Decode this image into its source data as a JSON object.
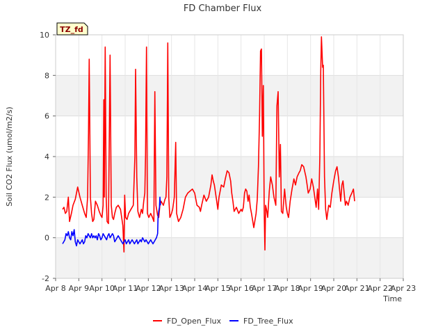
{
  "chart_data": {
    "type": "line",
    "title": "FD Chamber Flux",
    "xlabel": "Time",
    "ylabel": "Soil CO2 Flux (umol/m2/s)",
    "badge": "TZ_fd",
    "xlim": [
      8,
      23
    ],
    "ylim": [
      -2,
      10
    ],
    "x_ticks": [
      {
        "value": 8,
        "label": "Apr 8"
      },
      {
        "value": 9,
        "label": "Apr 9"
      },
      {
        "value": 10,
        "label": "Apr 10"
      },
      {
        "value": 11,
        "label": "Apr 11"
      },
      {
        "value": 12,
        "label": "Apr 12"
      },
      {
        "value": 13,
        "label": "Apr 13"
      },
      {
        "value": 14,
        "label": "Apr 14"
      },
      {
        "value": 15,
        "label": "Apr 15"
      },
      {
        "value": 16,
        "label": "Apr 16"
      },
      {
        "value": 17,
        "label": "Apr 17"
      },
      {
        "value": 18,
        "label": "Apr 18"
      },
      {
        "value": 19,
        "label": "Apr 19"
      },
      {
        "value": 20,
        "label": "Apr 20"
      },
      {
        "value": 21,
        "label": "Apr 21"
      },
      {
        "value": 22,
        "label": "Apr 22"
      },
      {
        "value": 23,
        "label": "Apr 23"
      }
    ],
    "y_ticks": [
      {
        "value": -2,
        "label": "-2"
      },
      {
        "value": 0,
        "label": "0"
      },
      {
        "value": 2,
        "label": "2"
      },
      {
        "value": 4,
        "label": "4"
      },
      {
        "value": 6,
        "label": "6"
      },
      {
        "value": 8,
        "label": "8"
      },
      {
        "value": 10,
        "label": "10"
      }
    ],
    "series": [
      {
        "name": "FD_Open_Flux",
        "color": "#ff0000",
        "points": [
          [
            8.3,
            1.4
          ],
          [
            8.36,
            1.5
          ],
          [
            8.42,
            1.2
          ],
          [
            8.48,
            1.3
          ],
          [
            8.55,
            2.0
          ],
          [
            8.6,
            0.8
          ],
          [
            8.68,
            1.2
          ],
          [
            8.75,
            1.6
          ],
          [
            8.85,
            1.9
          ],
          [
            8.95,
            2.5
          ],
          [
            9.05,
            2.0
          ],
          [
            9.15,
            1.6
          ],
          [
            9.25,
            1.2
          ],
          [
            9.32,
            1.0
          ],
          [
            9.38,
            2.0
          ],
          [
            9.42,
            5.2
          ],
          [
            9.45,
            8.8
          ],
          [
            9.5,
            2.0
          ],
          [
            9.55,
            1.2
          ],
          [
            9.6,
            0.8
          ],
          [
            9.65,
            0.9
          ],
          [
            9.72,
            1.8
          ],
          [
            9.8,
            1.6
          ],
          [
            9.88,
            1.3
          ],
          [
            9.95,
            1.1
          ],
          [
            10.0,
            1.0
          ],
          [
            10.05,
            1.6
          ],
          [
            10.08,
            6.8
          ],
          [
            10.1,
            2.0
          ],
          [
            10.14,
            9.4
          ],
          [
            10.18,
            2.0
          ],
          [
            10.22,
            0.8
          ],
          [
            10.28,
            0.7
          ],
          [
            10.35,
            9.0
          ],
          [
            10.4,
            1.6
          ],
          [
            10.45,
            1.0
          ],
          [
            10.5,
            0.9
          ],
          [
            10.55,
            1.2
          ],
          [
            10.62,
            1.5
          ],
          [
            10.7,
            1.6
          ],
          [
            10.8,
            1.4
          ],
          [
            10.85,
            1.0
          ],
          [
            10.9,
            0.6
          ],
          [
            10.95,
            -0.7
          ],
          [
            10.98,
            2.1
          ],
          [
            11.02,
            1.0
          ],
          [
            11.08,
            0.9
          ],
          [
            11.15,
            1.2
          ],
          [
            11.25,
            1.4
          ],
          [
            11.35,
            1.6
          ],
          [
            11.42,
            4.0
          ],
          [
            11.45,
            8.3
          ],
          [
            11.5,
            3.0
          ],
          [
            11.55,
            1.3
          ],
          [
            11.62,
            1.0
          ],
          [
            11.7,
            1.4
          ],
          [
            11.75,
            1.2
          ],
          [
            11.8,
            1.8
          ],
          [
            11.85,
            2.2
          ],
          [
            11.88,
            4.0
          ],
          [
            11.92,
            9.4
          ],
          [
            11.96,
            1.2
          ],
          [
            12.02,
            1.0
          ],
          [
            12.1,
            1.2
          ],
          [
            12.18,
            1.0
          ],
          [
            12.24,
            0.8
          ],
          [
            12.28,
            7.2
          ],
          [
            12.33,
            1.6
          ],
          [
            12.4,
            1.1
          ],
          [
            12.45,
            1.0
          ],
          [
            12.5,
            1.6
          ],
          [
            12.55,
            1.8
          ],
          [
            12.6,
            1.7
          ],
          [
            12.65,
            1.6
          ],
          [
            12.72,
            1.9
          ],
          [
            12.76,
            2.0
          ],
          [
            12.8,
            3.0
          ],
          [
            12.84,
            9.6
          ],
          [
            12.88,
            2.0
          ],
          [
            12.93,
            1.0
          ],
          [
            13.0,
            1.2
          ],
          [
            13.05,
            1.4
          ],
          [
            13.12,
            2.0
          ],
          [
            13.18,
            4.7
          ],
          [
            13.22,
            1.2
          ],
          [
            13.3,
            0.8
          ],
          [
            13.4,
            1.0
          ],
          [
            13.5,
            1.4
          ],
          [
            13.6,
            2.0
          ],
          [
            13.7,
            2.2
          ],
          [
            13.8,
            2.3
          ],
          [
            13.9,
            2.4
          ],
          [
            14.0,
            2.2
          ],
          [
            14.1,
            1.6
          ],
          [
            14.2,
            1.5
          ],
          [
            14.25,
            1.3
          ],
          [
            14.3,
            1.6
          ],
          [
            14.4,
            2.1
          ],
          [
            14.5,
            1.8
          ],
          [
            14.6,
            2.0
          ],
          [
            14.7,
            2.6
          ],
          [
            14.75,
            3.1
          ],
          [
            14.8,
            2.8
          ],
          [
            14.85,
            2.6
          ],
          [
            14.9,
            2.2
          ],
          [
            14.95,
            1.8
          ],
          [
            15.0,
            1.4
          ],
          [
            15.05,
            2.0
          ],
          [
            15.15,
            2.6
          ],
          [
            15.25,
            2.5
          ],
          [
            15.32,
            2.9
          ],
          [
            15.4,
            3.3
          ],
          [
            15.48,
            3.2
          ],
          [
            15.55,
            2.8
          ],
          [
            15.6,
            2.2
          ],
          [
            15.65,
            1.8
          ],
          [
            15.7,
            1.3
          ],
          [
            15.8,
            1.5
          ],
          [
            15.9,
            1.2
          ],
          [
            16.0,
            1.4
          ],
          [
            16.05,
            1.3
          ],
          [
            16.1,
            1.5
          ],
          [
            16.15,
            2.2
          ],
          [
            16.2,
            2.4
          ],
          [
            16.25,
            2.3
          ],
          [
            16.3,
            1.8
          ],
          [
            16.35,
            2.1
          ],
          [
            16.4,
            1.5
          ],
          [
            16.45,
            1.2
          ],
          [
            16.55,
            0.5
          ],
          [
            16.65,
            1.2
          ],
          [
            16.7,
            1.9
          ],
          [
            16.75,
            3.5
          ],
          [
            16.8,
            6.0
          ],
          [
            16.84,
            9.2
          ],
          [
            16.88,
            9.3
          ],
          [
            16.92,
            5.0
          ],
          [
            16.96,
            7.5
          ],
          [
            17.0,
            1.2
          ],
          [
            17.03,
            -0.6
          ],
          [
            17.06,
            1.6
          ],
          [
            17.1,
            1.4
          ],
          [
            17.15,
            1.0
          ],
          [
            17.22,
            2.3
          ],
          [
            17.28,
            3.0
          ],
          [
            17.35,
            2.6
          ],
          [
            17.42,
            2.0
          ],
          [
            17.5,
            1.6
          ],
          [
            17.55,
            6.5
          ],
          [
            17.6,
            7.2
          ],
          [
            17.65,
            3.0
          ],
          [
            17.7,
            4.6
          ],
          [
            17.74,
            1.3
          ],
          [
            17.8,
            1.2
          ],
          [
            17.88,
            2.4
          ],
          [
            17.95,
            1.5
          ],
          [
            18.0,
            1.2
          ],
          [
            18.05,
            1.0
          ],
          [
            18.12,
            1.8
          ],
          [
            18.2,
            2.4
          ],
          [
            18.28,
            2.9
          ],
          [
            18.35,
            2.6
          ],
          [
            18.42,
            3.0
          ],
          [
            18.5,
            3.2
          ],
          [
            18.55,
            3.3
          ],
          [
            18.62,
            3.6
          ],
          [
            18.7,
            3.5
          ],
          [
            18.8,
            3.0
          ],
          [
            18.85,
            2.6
          ],
          [
            18.9,
            2.2
          ],
          [
            18.98,
            2.4
          ],
          [
            19.05,
            2.9
          ],
          [
            19.12,
            2.5
          ],
          [
            19.18,
            2.0
          ],
          [
            19.24,
            1.5
          ],
          [
            19.3,
            2.4
          ],
          [
            19.35,
            1.4
          ],
          [
            19.4,
            4.0
          ],
          [
            19.44,
            8.2
          ],
          [
            19.47,
            9.9
          ],
          [
            19.52,
            8.4
          ],
          [
            19.55,
            8.5
          ],
          [
            19.6,
            3.0
          ],
          [
            19.65,
            1.4
          ],
          [
            19.7,
            0.9
          ],
          [
            19.78,
            1.6
          ],
          [
            19.85,
            1.5
          ],
          [
            19.92,
            2.2
          ],
          [
            20.0,
            2.8
          ],
          [
            20.08,
            3.3
          ],
          [
            20.14,
            3.5
          ],
          [
            20.2,
            3.0
          ],
          [
            20.25,
            2.4
          ],
          [
            20.3,
            1.8
          ],
          [
            20.35,
            2.6
          ],
          [
            20.4,
            2.8
          ],
          [
            20.45,
            2.2
          ],
          [
            20.5,
            1.6
          ],
          [
            20.55,
            1.8
          ],
          [
            20.62,
            1.6
          ],
          [
            20.7,
            2.0
          ],
          [
            20.78,
            2.2
          ],
          [
            20.85,
            2.4
          ],
          [
            20.9,
            1.8
          ]
        ]
      },
      {
        "name": "FD_Tree_Flux",
        "color": "#0000ff",
        "points": [
          [
            8.3,
            -0.3
          ],
          [
            8.35,
            -0.2
          ],
          [
            8.4,
            -0.1
          ],
          [
            8.45,
            0.2
          ],
          [
            8.5,
            0.1
          ],
          [
            8.55,
            0.3
          ],
          [
            8.6,
            0.0
          ],
          [
            8.65,
            -0.1
          ],
          [
            8.7,
            0.3
          ],
          [
            8.75,
            0.1
          ],
          [
            8.8,
            0.4
          ],
          [
            8.85,
            -0.2
          ],
          [
            8.9,
            -0.4
          ],
          [
            8.95,
            -0.1
          ],
          [
            9.0,
            -0.2
          ],
          [
            9.05,
            -0.3
          ],
          [
            9.1,
            -0.2
          ],
          [
            9.15,
            -0.1
          ],
          [
            9.2,
            -0.3
          ],
          [
            9.25,
            -0.2
          ],
          [
            9.3,
            0.1
          ],
          [
            9.35,
            0.0
          ],
          [
            9.4,
            0.2
          ],
          [
            9.45,
            0.1
          ],
          [
            9.5,
            0.0
          ],
          [
            9.55,
            0.2
          ],
          [
            9.6,
            0.0
          ],
          [
            9.65,
            0.1
          ],
          [
            9.7,
            0.0
          ],
          [
            9.75,
            0.1
          ],
          [
            9.8,
            -0.1
          ],
          [
            9.85,
            0.2
          ],
          [
            9.9,
            0.1
          ],
          [
            9.95,
            -0.1
          ],
          [
            10.0,
            0.0
          ],
          [
            10.05,
            0.2
          ],
          [
            10.1,
            0.1
          ],
          [
            10.15,
            0.0
          ],
          [
            10.2,
            -0.1
          ],
          [
            10.25,
            0.1
          ],
          [
            10.3,
            0.2
          ],
          [
            10.35,
            0.0
          ],
          [
            10.4,
            0.1
          ],
          [
            10.45,
            0.2
          ],
          [
            10.5,
            0.1
          ],
          [
            10.55,
            -0.2
          ],
          [
            10.6,
            -0.1
          ],
          [
            10.65,
            0.0
          ],
          [
            10.7,
            0.1
          ],
          [
            10.75,
            0.0
          ],
          [
            10.8,
            -0.1
          ],
          [
            10.85,
            -0.2
          ],
          [
            10.9,
            -0.3
          ],
          [
            10.95,
            -0.2
          ],
          [
            11.0,
            -0.1
          ],
          [
            11.05,
            -0.3
          ],
          [
            11.1,
            -0.2
          ],
          [
            11.15,
            -0.1
          ],
          [
            11.2,
            -0.3
          ],
          [
            11.25,
            -0.2
          ],
          [
            11.3,
            -0.1
          ],
          [
            11.35,
            -0.2
          ],
          [
            11.4,
            -0.3
          ],
          [
            11.45,
            -0.2
          ],
          [
            11.5,
            -0.1
          ],
          [
            11.55,
            -0.3
          ],
          [
            11.6,
            -0.2
          ],
          [
            11.65,
            -0.1
          ],
          [
            11.7,
            -0.2
          ],
          [
            11.75,
            0.0
          ],
          [
            11.8,
            -0.1
          ],
          [
            11.85,
            -0.2
          ],
          [
            11.9,
            -0.1
          ],
          [
            11.95,
            -0.2
          ],
          [
            12.0,
            -0.3
          ],
          [
            12.05,
            -0.2
          ],
          [
            12.1,
            -0.1
          ],
          [
            12.15,
            -0.2
          ],
          [
            12.2,
            -0.3
          ],
          [
            12.25,
            -0.2
          ],
          [
            12.3,
            -0.1
          ],
          [
            12.35,
            0.0
          ],
          [
            12.4,
            0.2
          ],
          [
            12.42,
            1.0
          ],
          [
            12.45,
            1.3
          ],
          [
            12.48,
            1.5
          ],
          [
            12.5,
            2.0
          ],
          [
            12.52,
            1.6
          ]
        ]
      }
    ]
  }
}
